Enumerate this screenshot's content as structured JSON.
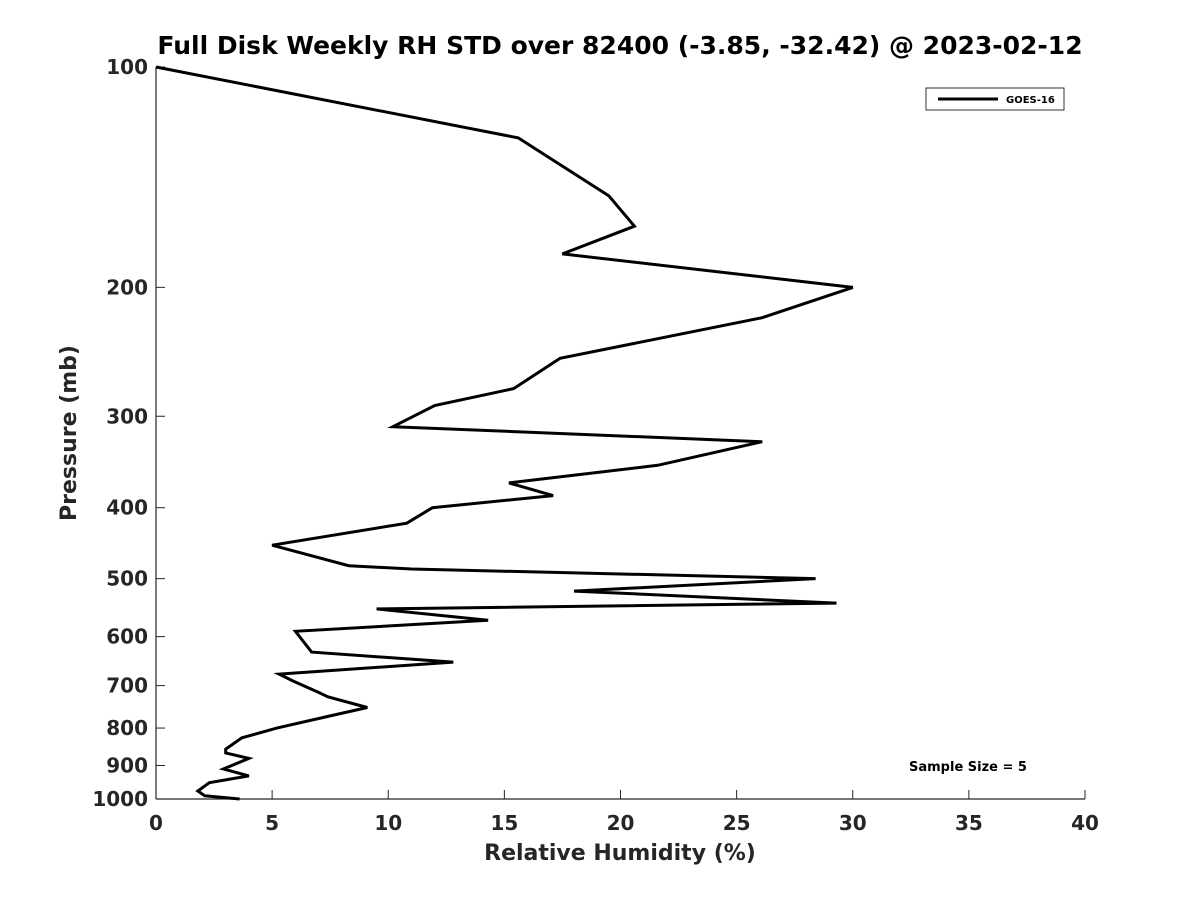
{
  "chart_data": {
    "type": "line",
    "title": "Full Disk Weekly RH STD over 82400 (-3.85, -32.42) @ 2023-02-12",
    "xlabel": "Relative Humidity (%)",
    "ylabel": "Pressure (mb)",
    "xlim": [
      0,
      40
    ],
    "ylim": [
      100,
      1000
    ],
    "yscale": "log",
    "y_inverted": true,
    "grid": false,
    "legend_position": "top-right",
    "x_ticks": [
      0,
      5,
      10,
      15,
      20,
      25,
      30,
      35,
      40
    ],
    "x_tick_labels": [
      "0",
      "5",
      "10",
      "15",
      "20",
      "25",
      "30",
      "35",
      "40"
    ],
    "y_ticks": [
      100,
      200,
      300,
      400,
      500,
      600,
      700,
      800,
      900,
      1000
    ],
    "y_tick_labels": [
      "100",
      "200",
      "300",
      "400",
      "500",
      "600",
      "700",
      "800",
      "900",
      "1000"
    ],
    "series": [
      {
        "name": "GOES-16",
        "color": "#000000",
        "x": [
          0.0,
          15.6,
          19.5,
          20.6,
          17.5,
          30.0,
          26.1,
          17.4,
          15.4,
          12.0,
          10.2,
          26.1,
          21.6,
          15.2,
          17.1,
          11.9,
          10.8,
          5.0,
          8.3,
          11.0,
          28.4,
          18.0,
          29.3,
          9.5,
          14.3,
          6.0,
          6.7,
          12.8,
          5.3,
          5.9,
          7.0,
          7.4,
          9.1,
          7.5,
          5.2,
          3.7,
          3.0,
          3.0,
          4.0,
          2.9,
          4.0,
          2.3,
          1.8,
          2.1,
          3.6
        ],
        "y": [
          100,
          125,
          150,
          165,
          180,
          200,
          220,
          250,
          275,
          290,
          310,
          325,
          350,
          370,
          385,
          400,
          420,
          450,
          480,
          485,
          500,
          520,
          540,
          550,
          570,
          590,
          630,
          650,
          675,
          690,
          715,
          725,
          750,
          770,
          800,
          825,
          855,
          865,
          880,
          910,
          930,
          950,
          975,
          990,
          1000
        ]
      }
    ],
    "annotations": [
      {
        "text": "Sample Size = 5",
        "position": "bottom-right"
      }
    ]
  }
}
